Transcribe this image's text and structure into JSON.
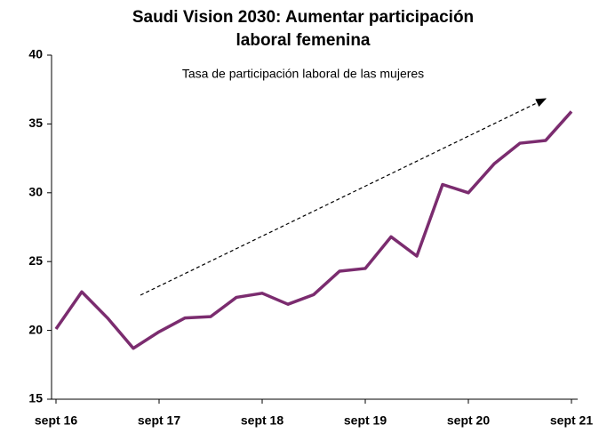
{
  "chart_data": {
    "type": "line",
    "title": [
      "Saudi Vision 2030: Aumentar participación",
      "laboral femenina"
    ],
    "subtitle": "Tasa de participación laboral de las mujeres",
    "categories": [
      "sept 16",
      null,
      null,
      null,
      "sept 17",
      null,
      null,
      null,
      "sept 18",
      null,
      null,
      null,
      "sept 19",
      null,
      null,
      null,
      "sept 20",
      null,
      null,
      null,
      "sept 21"
    ],
    "series": [
      {
        "name": "Tasa de participación laboral de las mujeres",
        "color": "#7b2c6f",
        "values": [
          20.1,
          22.8,
          20.9,
          18.7,
          19.9,
          20.9,
          21.0,
          22.4,
          22.7,
          21.9,
          22.6,
          24.3,
          24.5,
          26.8,
          25.4,
          30.6,
          30.0,
          32.1,
          33.6,
          33.8,
          35.9
        ]
      }
    ],
    "ylim": [
      15,
      40
    ],
    "yticks": [
      15,
      20,
      25,
      30,
      35,
      40
    ],
    "grid": false
  }
}
